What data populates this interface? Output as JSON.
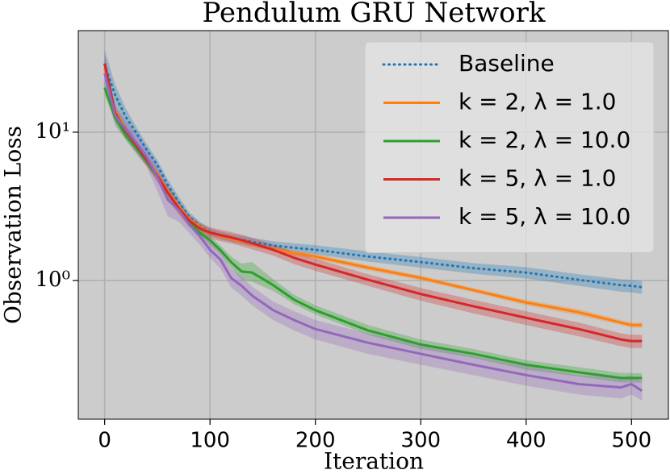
{
  "chart_data": {
    "type": "line",
    "title": "Pendulum GRU Network",
    "xlabel": "Iteration",
    "ylabel": "Observation Loss",
    "x": [
      0,
      10,
      20,
      30,
      40,
      50,
      60,
      70,
      80,
      90,
      100,
      110,
      120,
      130,
      140,
      160,
      180,
      200,
      250,
      300,
      350,
      400,
      450,
      490,
      500,
      510
    ],
    "xlim": [
      -25,
      535
    ],
    "xticks": [
      0,
      100,
      200,
      300,
      400,
      500
    ],
    "ylim": [
      0.116,
      48.4
    ],
    "log_y": true,
    "yticks": [
      {
        "value": 1,
        "label": "10⁰"
      },
      {
        "value": 10,
        "label": "10¹"
      }
    ],
    "grid": true,
    "legend": "upper right",
    "series": [
      {
        "name": "Baseline",
        "color": "#1f77b4",
        "linestyle": "dotted",
        "values": [
          28.6,
          17.8,
          12.7,
          9.9,
          7.6,
          6.0,
          4.4,
          3.4,
          2.7,
          2.34,
          2.12,
          2.02,
          1.94,
          1.88,
          1.82,
          1.72,
          1.66,
          1.61,
          1.45,
          1.33,
          1.21,
          1.13,
          1.01,
          0.93,
          0.92,
          0.9
        ],
        "lower": [
          23,
          14.5,
          10.5,
          9.0,
          7.0,
          5.5,
          4.0,
          3.1,
          2.5,
          2.2,
          2.0,
          1.9,
          1.82,
          1.76,
          1.7,
          1.6,
          1.54,
          1.5,
          1.34,
          1.22,
          1.11,
          1.03,
          0.92,
          0.84,
          0.83,
          0.81
        ],
        "upper": [
          36,
          21,
          14.5,
          10.9,
          8.3,
          6.5,
          4.8,
          3.7,
          2.9,
          2.5,
          2.25,
          2.14,
          2.06,
          2.0,
          1.94,
          1.84,
          1.78,
          1.73,
          1.57,
          1.44,
          1.31,
          1.23,
          1.1,
          1.02,
          1.01,
          0.99
        ]
      },
      {
        "name": "k = 2, λ = 1.0",
        "color": "#ff7f0e",
        "linestyle": "solid",
        "values": [
          27,
          14,
          10.5,
          8.3,
          6.6,
          5.2,
          4.0,
          3.2,
          2.6,
          2.3,
          2.1,
          2.0,
          1.92,
          1.84,
          1.77,
          1.62,
          1.53,
          1.45,
          1.22,
          1.04,
          0.86,
          0.71,
          0.61,
          0.52,
          0.5,
          0.5
        ],
        "lower": [
          24,
          13.2,
          9.9,
          7.9,
          6.3,
          5.0,
          3.8,
          3.05,
          2.5,
          2.2,
          2.02,
          1.92,
          1.84,
          1.77,
          1.7,
          1.56,
          1.47,
          1.39,
          1.17,
          1.0,
          0.83,
          0.68,
          0.58,
          0.5,
          0.48,
          0.48
        ],
        "upper": [
          30,
          14.8,
          11.1,
          8.7,
          6.9,
          5.4,
          4.2,
          3.35,
          2.7,
          2.4,
          2.18,
          2.08,
          2.0,
          1.91,
          1.84,
          1.68,
          1.59,
          1.51,
          1.27,
          1.08,
          0.89,
          0.74,
          0.64,
          0.54,
          0.52,
          0.52
        ]
      },
      {
        "name": "k = 2, λ = 10.0",
        "color": "#2ca02c",
        "linestyle": "solid",
        "values": [
          20,
          12.5,
          9.5,
          7.8,
          6.3,
          5.0,
          3.9,
          3.1,
          2.5,
          2.1,
          1.87,
          1.6,
          1.33,
          1.15,
          1.13,
          0.93,
          0.74,
          0.63,
          0.46,
          0.37,
          0.32,
          0.27,
          0.24,
          0.22,
          0.22,
          0.22
        ],
        "lower": [
          18,
          11.5,
          8.8,
          7.2,
          5.9,
          4.7,
          3.6,
          2.9,
          2.35,
          1.97,
          1.75,
          1.5,
          1.22,
          1.02,
          0.98,
          0.85,
          0.69,
          0.59,
          0.43,
          0.345,
          0.3,
          0.25,
          0.225,
          0.205,
          0.205,
          0.205
        ],
        "upper": [
          23,
          13.5,
          10.2,
          8.4,
          6.8,
          5.4,
          4.2,
          3.3,
          2.7,
          2.25,
          2.0,
          1.72,
          1.45,
          1.3,
          1.33,
          1.02,
          0.8,
          0.68,
          0.5,
          0.4,
          0.345,
          0.29,
          0.26,
          0.238,
          0.238,
          0.236
        ]
      },
      {
        "name": "k = 5, λ = 1.0",
        "color": "#d62728",
        "linestyle": "solid",
        "values": [
          29,
          13.5,
          10.2,
          8.2,
          6.5,
          5.1,
          3.9,
          3.1,
          2.55,
          2.25,
          2.1,
          2.02,
          1.95,
          1.87,
          1.78,
          1.61,
          1.42,
          1.28,
          1.01,
          0.81,
          0.67,
          0.56,
          0.47,
          0.4,
          0.39,
          0.39
        ],
        "lower": [
          26,
          12.3,
          9.3,
          7.5,
          5.9,
          4.6,
          3.5,
          2.8,
          2.3,
          2.05,
          1.92,
          1.84,
          1.78,
          1.7,
          1.62,
          1.47,
          1.29,
          1.16,
          0.92,
          0.73,
          0.6,
          0.5,
          0.42,
          0.36,
          0.35,
          0.35
        ],
        "upper": [
          33,
          14.8,
          11.1,
          8.9,
          7.1,
          5.6,
          4.3,
          3.4,
          2.8,
          2.45,
          2.28,
          2.2,
          2.12,
          2.04,
          1.94,
          1.75,
          1.55,
          1.4,
          1.1,
          0.89,
          0.74,
          0.62,
          0.52,
          0.44,
          0.43,
          0.43
        ]
      },
      {
        "name": "k = 5, λ = 10.0",
        "color": "#9467bd",
        "linestyle": "solid",
        "values": [
          25,
          13,
          10.5,
          8.5,
          6.8,
          5.0,
          3.5,
          3.0,
          2.4,
          2.0,
          1.61,
          1.38,
          1.04,
          0.92,
          0.79,
          0.63,
          0.54,
          0.47,
          0.38,
          0.32,
          0.27,
          0.23,
          0.2,
          0.19,
          0.2,
          0.18
        ],
        "lower": [
          21,
          11,
          9,
          7.2,
          5.8,
          4.0,
          2.7,
          2.5,
          2.1,
          1.75,
          1.42,
          1.2,
          0.9,
          0.79,
          0.68,
          0.54,
          0.46,
          0.4,
          0.32,
          0.27,
          0.23,
          0.195,
          0.17,
          0.16,
          0.17,
          0.155
        ],
        "upper": [
          33,
          15,
          12,
          9.8,
          7.8,
          5.8,
          4.3,
          3.5,
          2.7,
          2.25,
          1.82,
          1.58,
          1.2,
          1.06,
          0.91,
          0.72,
          0.62,
          0.54,
          0.44,
          0.37,
          0.31,
          0.265,
          0.23,
          0.22,
          0.23,
          0.21
        ]
      }
    ]
  }
}
